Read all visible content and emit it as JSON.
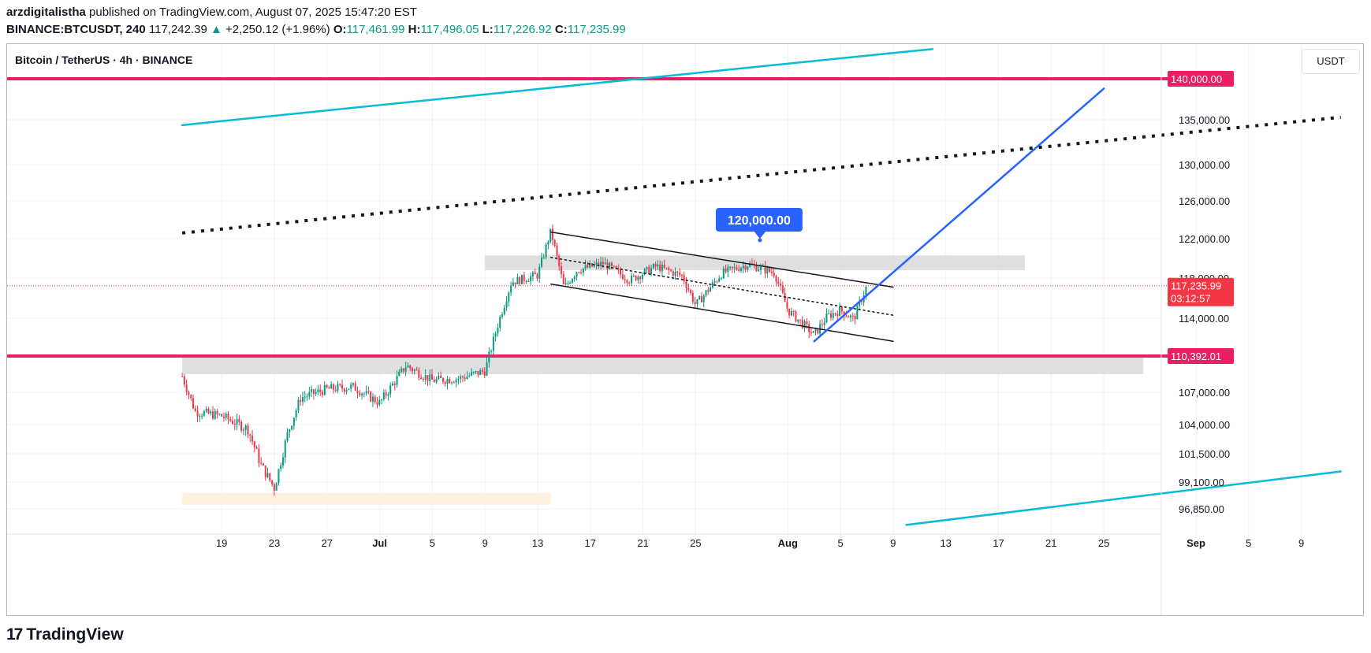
{
  "header": {
    "author": "arzdigitalistha",
    "published_text": "published on TradingView.com, August 07, 2025 15:47:20 EST",
    "symbol": "BINANCE:BTCUSDT, 240",
    "last": "117,242.39",
    "arrow": "▲",
    "change": "+2,250.12 (+1.96%)",
    "o_label": "O:",
    "o_value": "117,461.99",
    "h_label": "H:",
    "h_value": "117,496.05",
    "l_label": "L:",
    "l_value": "117,226.92",
    "c_label": "C:",
    "c_value": "117,235.99"
  },
  "chart_title": "Bitcoin / TetherUS · 4h · BINANCE",
  "unit_button": "USDT",
  "brand": {
    "logo": "17",
    "name": "TradingView"
  },
  "colors": {
    "bull": "#089981",
    "bear": "#f23645",
    "resistance": "#e91e63",
    "trend_cyan": "#00bcd4",
    "trend_blue": "#2962ff",
    "zone_gray": "#dcdcdc",
    "zone_orange": "#fff0d9"
  },
  "chart_data": {
    "type": "candlestick",
    "title": "Bitcoin / TetherUS · 4h · BINANCE",
    "y_axis_ticks": [
      "135,000.00",
      "130,000.00",
      "126,000.00",
      "122,000.00",
      "118,000.00",
      "114,000.00",
      "107,000.00",
      "104,000.00",
      "101,500.00",
      "99,100.00",
      "96,850.00"
    ],
    "x_axis_ticks": [
      "19",
      "23",
      "27",
      "Jul",
      "5",
      "9",
      "13",
      "17",
      "21",
      "25",
      "Aug",
      "5",
      "9",
      "13",
      "17",
      "21",
      "25",
      "Sep",
      "5",
      "9"
    ],
    "price_labels": [
      {
        "value": "140,000.00",
        "color": "#e91e63"
      },
      {
        "value": "117,235.99",
        "sub": "03:12:57",
        "color": "#f23645"
      },
      {
        "value": "110,392.01",
        "color": "#e91e63"
      }
    ],
    "callout": "120,000.00",
    "horizontal_levels": [
      140000,
      110392.01
    ],
    "last_price": 117235.99,
    "price_path": [
      {
        "date": "Jun 16",
        "price": 108500
      },
      {
        "date": "Jun 17",
        "price": 105200
      },
      {
        "date": "Jun 19",
        "price": 104800
      },
      {
        "date": "Jun 21",
        "price": 103600
      },
      {
        "date": "Jun 22",
        "price": 100500
      },
      {
        "date": "Jun 23",
        "price": 98600
      },
      {
        "date": "Jun 24",
        "price": 103200
      },
      {
        "date": "Jun 25",
        "price": 106500
      },
      {
        "date": "Jun 27",
        "price": 107300
      },
      {
        "date": "Jun 29",
        "price": 107500
      },
      {
        "date": "Jul 1",
        "price": 106000
      },
      {
        "date": "Jul 3",
        "price": 109500
      },
      {
        "date": "Jul 5",
        "price": 108100
      },
      {
        "date": "Jul 7",
        "price": 108300
      },
      {
        "date": "Jul 9",
        "price": 109000
      },
      {
        "date": "Jul 10",
        "price": 113500
      },
      {
        "date": "Jul 11",
        "price": 117600
      },
      {
        "date": "Jul 13",
        "price": 118300
      },
      {
        "date": "Jul 14",
        "price": 122800
      },
      {
        "date": "Jul 15",
        "price": 117000
      },
      {
        "date": "Jul 16",
        "price": 118800
      },
      {
        "date": "Jul 18",
        "price": 119500
      },
      {
        "date": "Jul 20",
        "price": 117800
      },
      {
        "date": "Jul 22",
        "price": 119200
      },
      {
        "date": "Jul 24",
        "price": 118200
      },
      {
        "date": "Jul 25",
        "price": 115300
      },
      {
        "date": "Jul 27",
        "price": 118500
      },
      {
        "date": "Jul 29",
        "price": 119400
      },
      {
        "date": "Jul 31",
        "price": 118500
      },
      {
        "date": "Aug 1",
        "price": 114800
      },
      {
        "date": "Aug 2",
        "price": 113600
      },
      {
        "date": "Aug 3",
        "price": 112400
      },
      {
        "date": "Aug 4",
        "price": 114200
      },
      {
        "date": "Aug 5",
        "price": 114800
      },
      {
        "date": "Aug 6",
        "price": 113900
      },
      {
        "date": "Aug 7",
        "price": 117235.99
      }
    ],
    "zones": [
      {
        "name": "resistance-zone",
        "from": "Jul 9",
        "to": "Aug 19",
        "low": 118800,
        "high": 120300
      },
      {
        "name": "support-zone",
        "from": "Jun 16",
        "to": "Aug 28",
        "low": 108700,
        "high": 110400
      },
      {
        "name": "demand-zone",
        "from": "Jun 16",
        "to": "Jul 14",
        "low": 97200,
        "high": 98200
      }
    ],
    "trendlines": [
      {
        "name": "channel-top",
        "from": [
          "Jul 14",
          122700
        ],
        "to": [
          "Aug 9",
          117100
        ],
        "style": "solid"
      },
      {
        "name": "channel-bottom",
        "from": [
          "Jul 14",
          117400
        ],
        "to": [
          "Aug 9",
          111800
        ],
        "style": "solid"
      },
      {
        "name": "channel-mid",
        "from": [
          "Jul 14",
          120100
        ],
        "to": [
          "Aug 9",
          114300
        ],
        "style": "dotted"
      },
      {
        "name": "breakout-line",
        "from": [
          "Aug 3",
          111800
        ],
        "to": [
          "Aug 25",
          138800
        ],
        "style": "solid"
      },
      {
        "name": "long-dotted",
        "from": [
          "Jun 16",
          122600
        ],
        "to": [
          "Sep 12",
          135300
        ],
        "style": "dotted"
      },
      {
        "name": "upper-channel",
        "from": [
          "Jun 16",
          134400
        ],
        "to": [
          "Aug 12",
          143500
        ],
        "style": "solid"
      },
      {
        "name": "lower-channel",
        "from": [
          "Aug 10",
          95500
        ],
        "to": [
          "Sep 12",
          100000
        ],
        "style": "solid"
      }
    ]
  }
}
